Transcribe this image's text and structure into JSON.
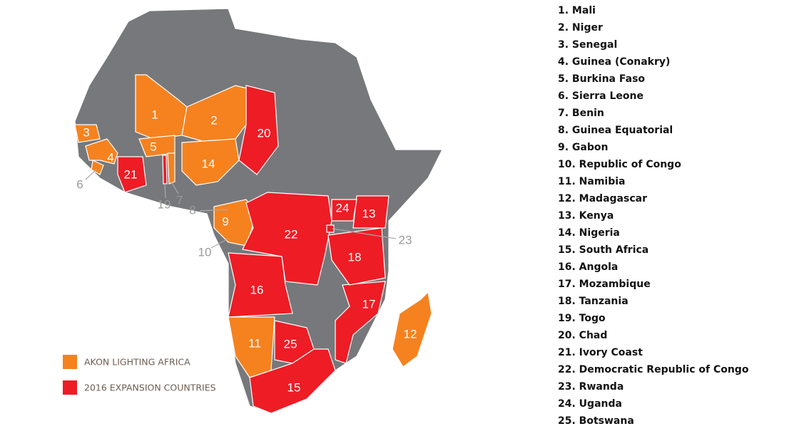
{
  "map": {
    "labels": [
      "1",
      "2",
      "3",
      "4",
      "5",
      "6",
      "7",
      "8",
      "9",
      "10",
      "11",
      "12",
      "13",
      "14",
      "15",
      "16",
      "17",
      "18",
      "19",
      "20",
      "21",
      "22",
      "23",
      "24",
      "25"
    ]
  },
  "legend": [
    {
      "label": "AKON LIGHTING AFRICA",
      "color": "#f5821f"
    },
    {
      "label": "2016 EXPANSION COUNTRIES",
      "color": "#ee1c25"
    }
  ],
  "list": [
    "1. Mali",
    "2. Niger",
    "3. Senegal",
    "4. Guinea (Conakry)",
    "5. Burkina Faso",
    "6. Sierra Leone",
    "7. Benin",
    "8. Guinea Equatorial",
    "9. Gabon",
    "10. Republic of Congo",
    "11. Namibia",
    "12. Madagascar",
    "13. Kenya",
    "14. Nigeria",
    "15. South Africa",
    "16. Angola",
    "17. Mozambique",
    "18. Tanzania",
    "19. Togo",
    "20. Chad",
    "21. Ivory Coast",
    "22. Democratic Republic of Congo",
    "23. Rwanda",
    "24. Uganda",
    "25. Botswana"
  ]
}
